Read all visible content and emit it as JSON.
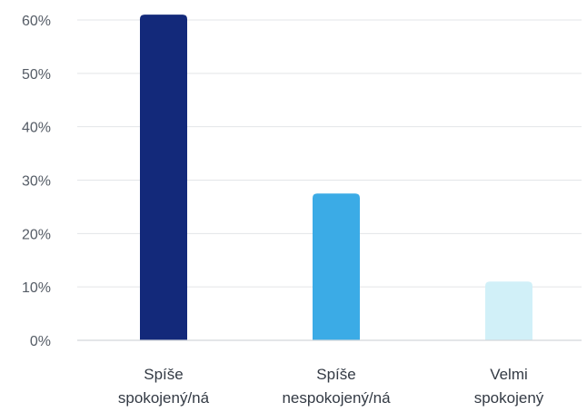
{
  "chart_data": {
    "type": "bar",
    "categories": [
      [
        "Spíše",
        "spokojený/ná"
      ],
      [
        "Spíše",
        "nespokojený/ná"
      ],
      [
        "Velmi",
        "spokojený"
      ]
    ],
    "values": [
      61,
      27.5,
      11
    ],
    "bar_colors": [
      "#13297a",
      "#3babe6",
      "#d1f0f8"
    ],
    "yticks": [
      "0%",
      "10%",
      "20%",
      "30%",
      "40%",
      "50%",
      "60%"
    ],
    "ylim": [
      0,
      60
    ],
    "grid": true,
    "title": "",
    "xlabel": "",
    "ylabel": ""
  }
}
